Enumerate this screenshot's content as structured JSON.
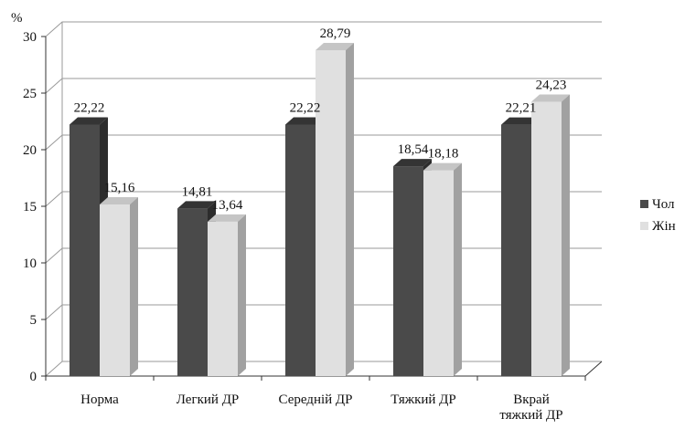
{
  "chart_data": {
    "type": "bar",
    "title": "",
    "xlabel": "",
    "ylabel": "%",
    "ylim": [
      0,
      30
    ],
    "yticks": [
      "0",
      "5",
      "10",
      "15",
      "20",
      "25",
      "30"
    ],
    "grid": true,
    "legend_position": "right",
    "categories": [
      "Норма",
      "Легкий ДР",
      "Середній ДР",
      "Тяжкий ДР",
      "Вкрай\nтяжкий ДР"
    ],
    "series": [
      {
        "name": "Чол",
        "values": [
          22.22,
          14.81,
          22.22,
          18.54,
          22.21
        ],
        "labels": [
          "22,22",
          "14,81",
          "22,22",
          "18,54",
          "22,21"
        ]
      },
      {
        "name": "Жін",
        "values": [
          15.16,
          13.64,
          28.79,
          18.18,
          24.23
        ],
        "labels": [
          "15,16",
          "13,64",
          "28,79",
          "18,18",
          "24,23"
        ]
      }
    ],
    "colors": {
      "Чол": "#4a4a4a",
      "Жін": "#e0e0e0"
    }
  }
}
